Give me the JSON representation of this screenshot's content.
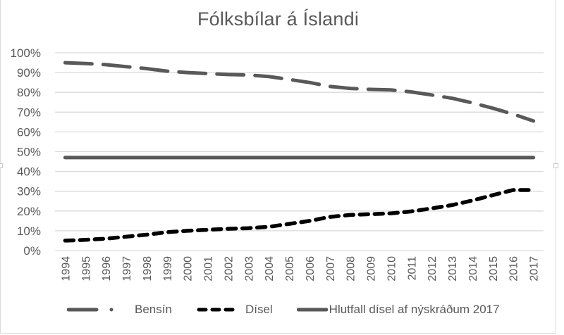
{
  "chart_data": {
    "type": "line",
    "title": "Fólksbílar á Íslandi",
    "xlabel": "",
    "ylabel": "",
    "ylim": [
      0,
      100
    ],
    "y_ticks": [
      "0%",
      "10%",
      "20%",
      "30%",
      "40%",
      "50%",
      "60%",
      "70%",
      "80%",
      "90%",
      "100%"
    ],
    "grid": true,
    "legend_position": "bottom",
    "categories": [
      "1994",
      "1995",
      "1996",
      "1997",
      "1998",
      "1999",
      "2000",
      "2001",
      "2002",
      "2003",
      "2004",
      "2005",
      "2006",
      "2007",
      "2008",
      "2009",
      "2010",
      "2011",
      "2012",
      "2013",
      "2014",
      "2015",
      "2016",
      "2017"
    ],
    "series": [
      {
        "name": "Bensín",
        "style": "long-dash",
        "color": "#595959",
        "values": [
          95,
          94.6,
          94,
          93,
          92,
          90.7,
          90,
          89.5,
          89,
          88.8,
          88,
          86.5,
          85,
          83,
          82,
          81.5,
          81.2,
          80.2,
          78.7,
          77,
          74.7,
          72,
          69,
          65.5
        ]
      },
      {
        "name": "Dísel",
        "style": "short-dash",
        "color": "#000000",
        "values": [
          5,
          5.4,
          6,
          7,
          8,
          9.3,
          10,
          10.5,
          11,
          11.3,
          12,
          13.5,
          15,
          17,
          18,
          18.4,
          18.8,
          19.8,
          21.3,
          23,
          25.3,
          28,
          30.6,
          30.6
        ]
      },
      {
        "name": "Hlutfall dísel af nýskráðum 2017",
        "style": "solid",
        "color": "#595959",
        "values": [
          47,
          47,
          47,
          47,
          47,
          47,
          47,
          47,
          47,
          47,
          47,
          47,
          47,
          47,
          47,
          47,
          47,
          47,
          47,
          47,
          47,
          47,
          47,
          47
        ]
      }
    ]
  },
  "legend": {
    "items": [
      {
        "label": "Bensín"
      },
      {
        "label": "Dísel"
      },
      {
        "label": "Hlutfall dísel af nýskráðum 2017"
      }
    ]
  }
}
